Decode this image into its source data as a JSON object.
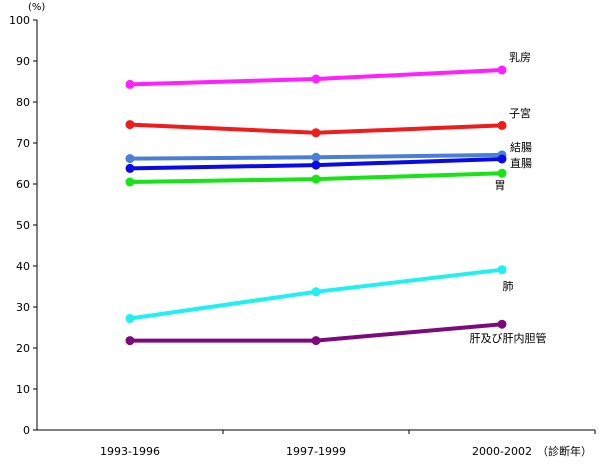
{
  "chart_data": {
    "type": "line",
    "title": "",
    "ylabel": "(%)",
    "xlabel": "（診断年）",
    "ylim": [
      0,
      100
    ],
    "yticks": [
      "0",
      "10",
      "20",
      "30",
      "40",
      "50",
      "60",
      "70",
      "80",
      "90",
      "100"
    ],
    "categories": [
      "1993-1996",
      "1997-1999",
      "2000-2002"
    ],
    "grid": false,
    "series": [
      {
        "name": "乳房",
        "values": [
          84.3,
          85.6,
          87.8
        ],
        "color": "#ff1fff"
      },
      {
        "name": "子宮",
        "values": [
          74.5,
          72.5,
          74.3
        ],
        "color": "#ee1c1c"
      },
      {
        "name": "結腸",
        "values": [
          66.2,
          66.5,
          67.1
        ],
        "color": "#4a7fd8"
      },
      {
        "name": "直腸",
        "values": [
          63.8,
          64.6,
          66.1
        ],
        "color": "#0a0ae6"
      },
      {
        "name": "胃",
        "values": [
          60.5,
          61.2,
          62.6
        ],
        "color": "#17e317"
      },
      {
        "name": "肺",
        "values": [
          27.2,
          33.7,
          39.1
        ],
        "color": "#1ff0f0"
      },
      {
        "name": "肝及び肝内胆管",
        "values": [
          21.8,
          21.8,
          25.8
        ],
        "color": "#7d0a7d"
      }
    ]
  }
}
